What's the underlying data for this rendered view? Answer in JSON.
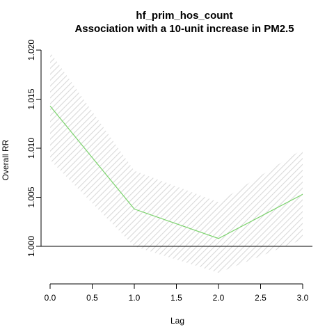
{
  "chart_data": {
    "type": "line",
    "title": "hf_prim_hos_count",
    "subtitle": "Association with a 10-unit increase in PM2.5",
    "xlabel": "Lag",
    "ylabel": "Overall RR",
    "xlim": [
      0.0,
      3.0
    ],
    "ylim": [
      1.0,
      1.02
    ],
    "x_ticks": [
      "0.0",
      "0.5",
      "1.0",
      "1.5",
      "2.0",
      "2.5",
      "3.0"
    ],
    "y_ticks": [
      "1.000",
      "1.005",
      "1.010",
      "1.015",
      "1.020"
    ],
    "x": [
      0,
      1,
      2,
      3
    ],
    "series": [
      {
        "values": [
          1.0143,
          1.0038,
          1.0008,
          1.0053
        ]
      }
    ],
    "ci_lower": [
      1.0088,
      1.0,
      0.9973,
      1.0007
    ],
    "ci_upper": [
      1.0198,
      1.0077,
      1.0045,
      1.0099
    ],
    "reference_line": 1.0,
    "line_color": "#7ad36b",
    "ci_color": "#d9d9d9",
    "grid": false
  }
}
